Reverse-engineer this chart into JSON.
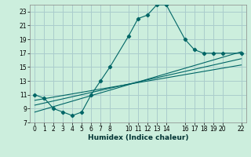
{
  "xlabel": "Humidex (Indice chaleur)",
  "bg_color": "#cceedd",
  "grid_color": "#aacccc",
  "line_color": "#006666",
  "xlim": [
    -0.5,
    22.5
  ],
  "ylim": [
    7,
    24
  ],
  "xticks": [
    0,
    1,
    2,
    3,
    4,
    5,
    6,
    7,
    8,
    10,
    11,
    12,
    13,
    14,
    16,
    17,
    18,
    19,
    20,
    22
  ],
  "yticks": [
    7,
    9,
    11,
    13,
    15,
    17,
    19,
    21,
    23
  ],
  "series_main": {
    "x": [
      0,
      1,
      2,
      3,
      4,
      5,
      6,
      7,
      8,
      10,
      11,
      12,
      13,
      14,
      16,
      17,
      18,
      19,
      20,
      22
    ],
    "y": [
      11,
      10.5,
      9,
      8.5,
      8,
      8.5,
      11,
      13,
      15,
      19.5,
      22,
      22.5,
      24,
      24,
      19,
      17.5,
      17,
      17,
      17,
      17
    ]
  },
  "series_lines": [
    {
      "x": [
        0,
        22
      ],
      "y": [
        8.5,
        17.2
      ]
    },
    {
      "x": [
        0,
        22
      ],
      "y": [
        9.5,
        16.2
      ]
    },
    {
      "x": [
        0,
        22
      ],
      "y": [
        10.2,
        15.3
      ]
    }
  ]
}
